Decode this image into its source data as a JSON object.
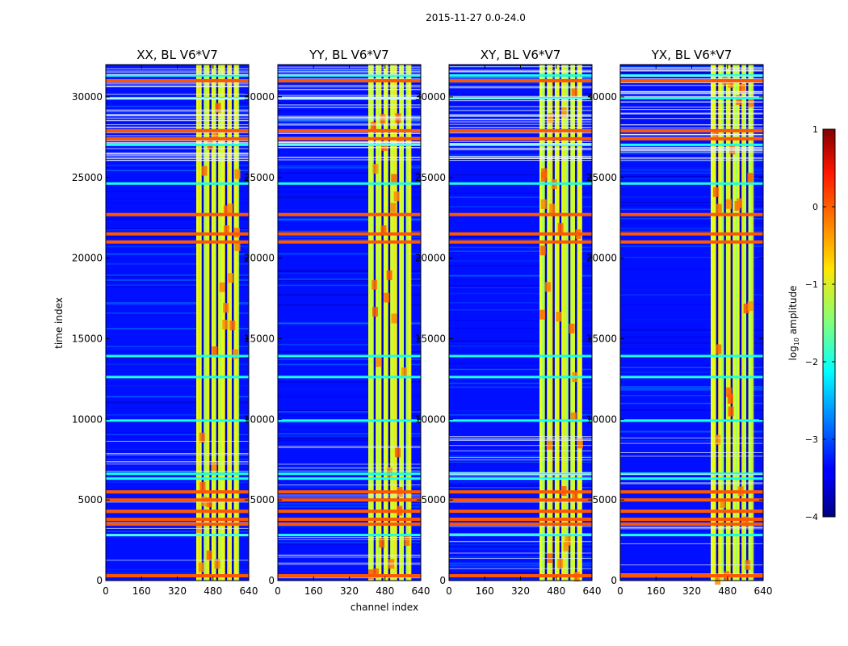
{
  "suptitle": "2015-11-27 0.0-24.0",
  "chart_data": {
    "type": "heatmap",
    "xlabel": "channel index",
    "ylabel": "time index",
    "xlim": [
      0,
      640
    ],
    "ylim": [
      0,
      32000
    ],
    "xticks": [
      0,
      160,
      320,
      480,
      640
    ],
    "yticks": [
      0,
      5000,
      10000,
      15000,
      20000,
      25000,
      30000
    ],
    "panels": [
      {
        "title": "XX, BL V6*V7"
      },
      {
        "title": "YY, BL V6*V7"
      },
      {
        "title": "XY, BL V6*V7"
      },
      {
        "title": "YX, BL V6*V7"
      }
    ],
    "colorbar": {
      "label": "amplitude",
      "label_prefix": "log",
      "label_sub": "10",
      "range": [
        -4,
        1
      ],
      "ticks": [
        1,
        0,
        -1,
        -2,
        -3,
        -4
      ],
      "tick_labels": [
        "1",
        "0",
        "−1",
        "−2",
        "−3",
        "−4"
      ],
      "colormap": "jet"
    },
    "features": {
      "background_log_amp": -3.3,
      "rfi_channel_band": [
        405,
        595
      ],
      "rfi_band_log_amp": -1.0,
      "rfi_hot_channels": [
        405,
        440,
        475,
        505,
        545,
        575
      ],
      "strong_time_rows": [
        300,
        3500,
        3800,
        4300,
        5000,
        5500,
        21000,
        21500,
        22700,
        27400,
        27900,
        31000
      ],
      "moderate_time_rows": [
        2800,
        6300,
        6600,
        9900,
        12600,
        13900,
        24600,
        27000,
        29900,
        31300
      ]
    }
  }
}
